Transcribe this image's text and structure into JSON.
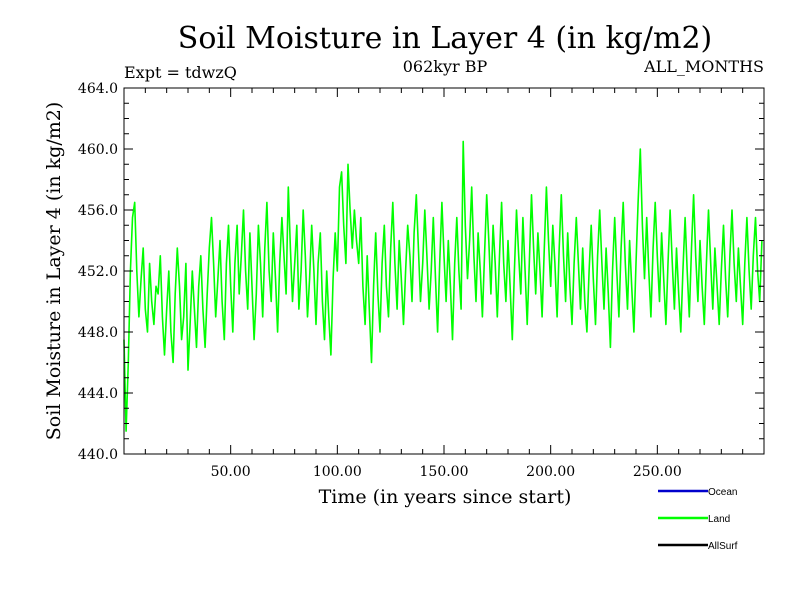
{
  "chart_data": {
    "type": "line",
    "title": "Soil Moisture in Layer 4 (in kg/m2)",
    "subtitle_left": "Expt = tdwzQ",
    "subtitle_center": "062kyr BP",
    "subtitle_right": "ALL_MONTHS",
    "xlabel": "Time (in years since start)",
    "ylabel": "Soil Moisture in Layer 4 (in kg/m2)",
    "xlim": [
      0,
      300
    ],
    "ylim": [
      440.0,
      464.0
    ],
    "x_ticks": [
      50,
      100,
      150,
      200,
      250
    ],
    "x_tick_labels": [
      "50.00",
      "100.00",
      "150.00",
      "200.00",
      "250.00"
    ],
    "y_ticks": [
      440,
      444,
      448,
      452,
      456,
      460,
      464
    ],
    "y_tick_labels": [
      "440.0",
      "444.0",
      "448.0",
      "452.0",
      "456.0",
      "460.0",
      "464.0"
    ],
    "grid": false,
    "legend_position": "bottom-right",
    "series": [
      {
        "name": "Ocean",
        "color": "#0000cc",
        "values": []
      },
      {
        "name": "Land",
        "color": "#00ff00",
        "x_step": 1,
        "values": [
          447.5,
          441.5,
          446.0,
          452.0,
          455.5,
          456.5,
          452.0,
          449.0,
          451.5,
          453.5,
          449.5,
          448.0,
          452.5,
          450.0,
          448.5,
          451.0,
          450.5,
          453.0,
          449.0,
          446.5,
          449.5,
          452.0,
          448.0,
          446.0,
          450.5,
          453.5,
          451.0,
          447.5,
          449.0,
          452.5,
          445.5,
          448.5,
          452.0,
          449.5,
          447.0,
          451.0,
          453.0,
          449.5,
          447.0,
          450.5,
          453.5,
          455.5,
          452.5,
          449.0,
          451.5,
          454.0,
          450.0,
          447.5,
          452.5,
          455.0,
          451.0,
          448.0,
          452.5,
          455.0,
          450.5,
          453.0,
          456.0,
          452.0,
          449.5,
          454.5,
          451.0,
          447.5,
          450.5,
          455.0,
          452.5,
          449.0,
          453.5,
          456.5,
          452.0,
          450.0,
          454.5,
          451.5,
          448.0,
          452.5,
          455.5,
          453.0,
          450.5,
          457.5,
          453.5,
          450.0,
          452.5,
          455.0,
          449.5,
          452.0,
          456.0,
          453.0,
          449.0,
          451.5,
          455.0,
          452.0,
          448.5,
          452.5,
          454.5,
          450.0,
          447.5,
          452.0,
          449.0,
          446.5,
          451.5,
          454.5,
          452.0,
          457.5,
          458.5,
          455.0,
          452.5,
          459.0,
          456.0,
          453.5,
          456.0,
          454.0,
          452.5,
          455.5,
          451.0,
          448.5,
          453.0,
          449.5,
          446.0,
          451.0,
          454.5,
          450.5,
          448.0,
          452.5,
          455.0,
          451.0,
          449.0,
          453.5,
          456.5,
          452.5,
          449.5,
          454.0,
          451.5,
          448.5,
          452.0,
          455.0,
          453.0,
          450.0,
          454.5,
          457.0,
          453.5,
          450.0,
          452.5,
          456.0,
          453.0,
          449.5,
          452.0,
          455.5,
          451.5,
          448.0,
          452.5,
          456.5,
          453.0,
          450.0,
          454.0,
          451.0,
          447.5,
          452.5,
          455.5,
          452.0,
          449.5,
          460.5,
          455.0,
          451.5,
          454.0,
          457.5,
          453.0,
          450.0,
          454.5,
          452.0,
          449.0,
          453.0,
          457.0,
          454.0,
          450.5,
          455.0,
          452.5,
          449.0,
          453.0,
          456.5,
          452.5,
          450.0,
          454.0,
          451.0,
          447.5,
          452.0,
          456.0,
          453.0,
          450.5,
          455.5,
          452.0,
          448.5,
          452.5,
          457.0,
          453.5,
          450.5,
          454.5,
          452.0,
          449.0,
          453.5,
          457.5,
          454.0,
          451.0,
          455.0,
          452.5,
          449.0,
          453.5,
          457.0,
          453.0,
          450.0,
          454.5,
          451.0,
          448.5,
          452.5,
          455.5,
          452.5,
          449.5,
          453.5,
          450.0,
          448.0,
          452.0,
          455.0,
          451.5,
          448.5,
          453.0,
          456.0,
          452.5,
          449.5,
          453.5,
          450.5,
          447.0,
          452.0,
          455.5,
          452.0,
          449.0,
          453.5,
          456.5,
          452.5,
          449.5,
          454.0,
          451.0,
          448.0,
          452.5,
          456.5,
          460.0,
          455.0,
          451.5,
          455.5,
          452.0,
          449.0,
          453.5,
          456.5,
          453.0,
          450.0,
          454.5,
          451.5,
          448.5,
          452.5,
          456.0,
          452.5,
          449.5,
          453.5,
          450.5,
          448.0,
          452.0,
          455.5,
          452.0,
          449.0,
          453.5,
          457.0,
          453.0,
          450.0,
          454.0,
          451.0,
          448.5,
          452.5,
          456.0,
          452.5,
          449.5,
          453.5,
          451.0,
          448.5,
          452.0,
          455.0,
          451.5,
          449.0,
          453.0,
          456.0,
          452.5,
          450.0,
          453.5,
          451.0,
          448.5,
          452.5,
          455.5,
          452.0,
          449.5,
          453.0,
          455.5,
          452.0,
          450.0,
          454.0
        ]
      },
      {
        "name": "AllSurf",
        "color": "#000000",
        "values": []
      }
    ]
  }
}
